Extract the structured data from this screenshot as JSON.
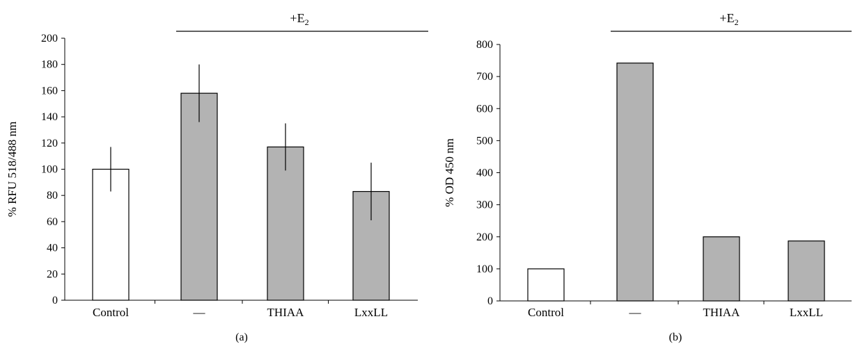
{
  "chart_data": [
    {
      "panel_label": "(a)",
      "type": "bar",
      "ylabel": "% RFU 518/488 nm",
      "ylim": [
        0,
        200
      ],
      "yticks": [
        0,
        20,
        40,
        60,
        80,
        100,
        120,
        140,
        160,
        180,
        200
      ],
      "categories": [
        "Control",
        "—",
        "THIAA",
        "LxxLL"
      ],
      "values": [
        100,
        158,
        117,
        83
      ],
      "errors": [
        17,
        22,
        18,
        22
      ],
      "bar_colors": [
        "#ffffff",
        "#b3b3b3",
        "#b3b3b3",
        "#b3b3b3"
      ],
      "group_label": {
        "prefix": "+E",
        "subscript": "2"
      }
    },
    {
      "panel_label": "(b)",
      "type": "bar",
      "ylabel": "% OD 450 nm",
      "ylim": [
        0,
        800
      ],
      "yticks": [
        0,
        100,
        200,
        300,
        400,
        500,
        600,
        700,
        800
      ],
      "categories": [
        "Control",
        "—",
        "THIAA",
        "LxxLL"
      ],
      "values": [
        100,
        742,
        200,
        187
      ],
      "bar_colors": [
        "#ffffff",
        "#b3b3b3",
        "#b3b3b3",
        "#b3b3b3"
      ],
      "group_label": {
        "prefix": "+E",
        "subscript": "2"
      }
    }
  ]
}
